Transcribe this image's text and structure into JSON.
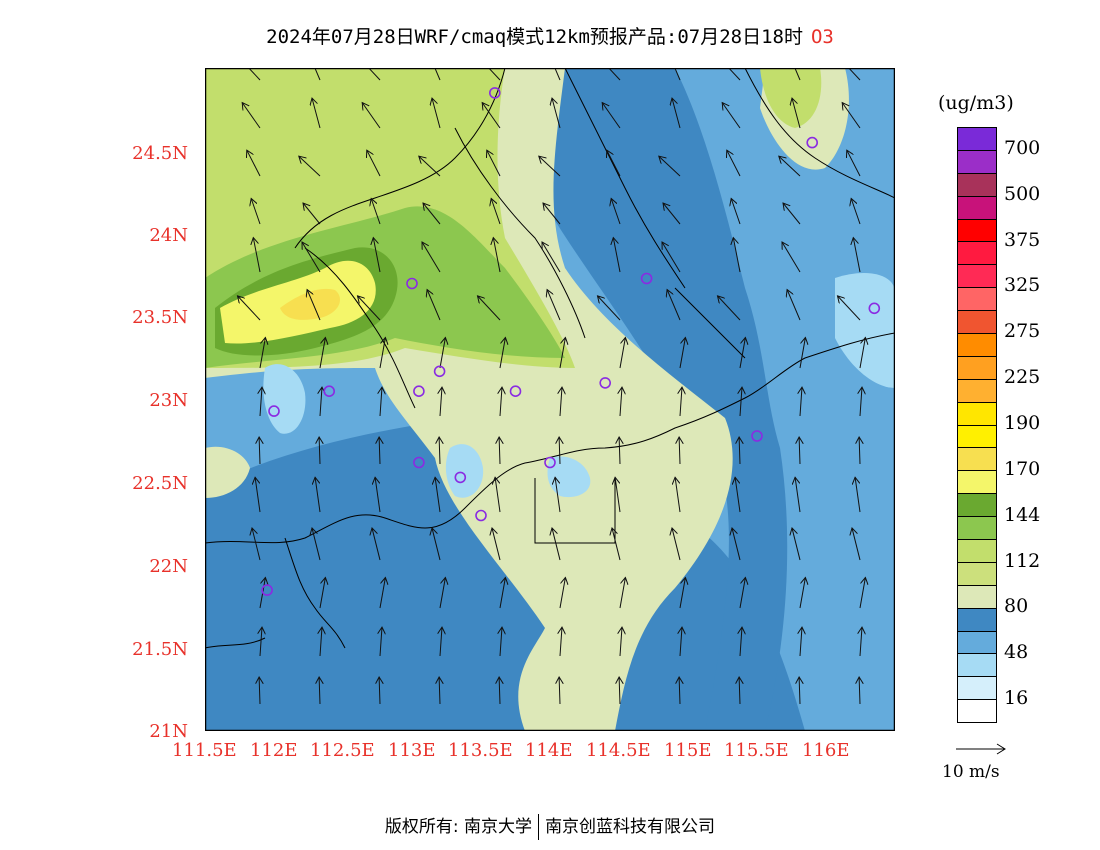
{
  "title": {
    "text": "2024年07月28日WRF/cmaq模式12km预报产品:07月28日18时",
    "species": "O3"
  },
  "axes": {
    "lat_labels": [
      "24.5N",
      "24N",
      "23.5N",
      "23N",
      "22.5N",
      "22N",
      "21.5N",
      "21N"
    ],
    "lon_labels": [
      "111.5E",
      "112E",
      "112.5E",
      "113E",
      "113.5E",
      "114E",
      "114.5E",
      "115E",
      "115.5E",
      "116E"
    ],
    "lat_range": [
      21,
      25
    ],
    "lon_range": [
      111.5,
      116.5
    ]
  },
  "colorbar": {
    "unit": "(ug/m3)",
    "colors": [
      "#7a2ad8",
      "#9b2ec8",
      "#a8325a",
      "#c8127a",
      "#ff0000",
      "#ff1a40",
      "#ff2a55",
      "#ff6565",
      "#f05530",
      "#ff8c00",
      "#ffa020",
      "#ffb030",
      "#ffe600",
      "#fff000",
      "#f7df50",
      "#f4f66a",
      "#6aa930",
      "#8cc74f",
      "#c2de6c",
      "#cce07c",
      "#dde8b8",
      "#3f88c2",
      "#64abdc",
      "#a6dbf4",
      "#d5effb",
      "#ffffff"
    ],
    "labels": [
      "700",
      "500",
      "375",
      "325",
      "275",
      "225",
      "190",
      "170",
      "144",
      "112",
      "80",
      "48",
      "16"
    ]
  },
  "ref_vector": {
    "label": "10 m/s"
  },
  "stations": [
    [
      113.6,
      24.85
    ],
    [
      115.9,
      24.55
    ],
    [
      116.35,
      23.55
    ],
    [
      114.7,
      23.73
    ],
    [
      113.0,
      23.7
    ],
    [
      112.4,
      23.05
    ],
    [
      112.0,
      22.93
    ],
    [
      113.05,
      23.05
    ],
    [
      113.2,
      23.17
    ],
    [
      113.75,
      23.05
    ],
    [
      114.4,
      23.1
    ],
    [
      113.05,
      22.62
    ],
    [
      113.35,
      22.53
    ],
    [
      113.5,
      22.3
    ],
    [
      114.0,
      22.62
    ],
    [
      115.5,
      22.78
    ],
    [
      111.95,
      21.85
    ]
  ],
  "footer": {
    "left": "版权所有: 南京大学",
    "right": "南京创蓝科技有限公司"
  }
}
